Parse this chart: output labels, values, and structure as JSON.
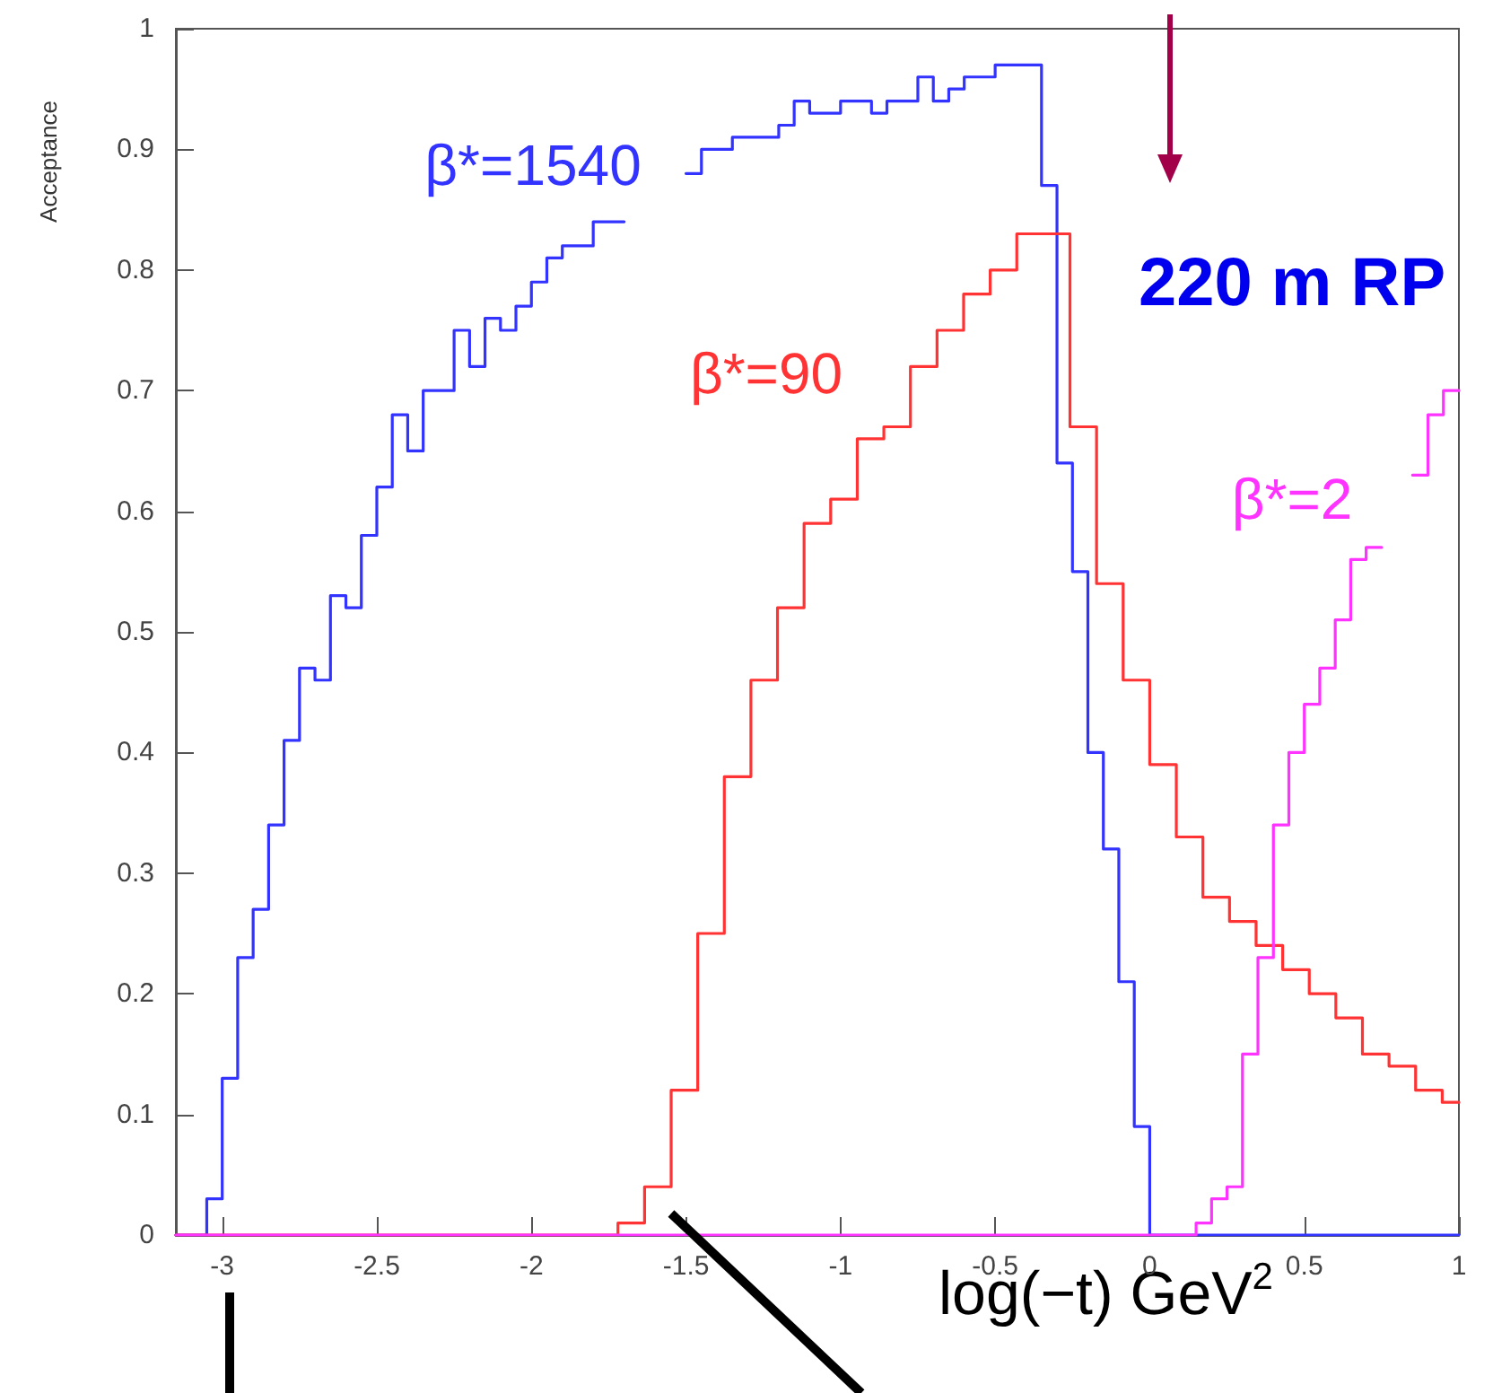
{
  "chart_data": {
    "type": "step",
    "xlabel": "log(−t) GeV$^{2}$",
    "ylabel": "Acceptance",
    "annotations": [
      "220 m RP"
    ],
    "xlim": [
      -3.15,
      1
    ],
    "xticks": [
      -3,
      -2.5,
      -2,
      -1.5,
      -1,
      -0.5,
      0,
      0.5,
      1
    ],
    "ylim": [
      0,
      1
    ],
    "yticks": [
      0,
      0.1,
      0.2,
      0.3,
      0.4,
      0.5,
      0.6,
      0.7,
      0.8,
      0.9,
      1
    ],
    "grid": false,
    "legend": false,
    "marker": "none",
    "line_style": "solid",
    "series": [
      {
        "name": "β*=1540",
        "color": "#3333ff",
        "x": [
          -3.15,
          -3.05,
          -3.0,
          -2.95,
          -2.9,
          -2.85,
          -2.8,
          -2.75,
          -2.7,
          -2.65,
          -2.6,
          -2.55,
          -2.5,
          -2.45,
          -2.4,
          -2.35,
          -2.3,
          -2.25,
          -2.2,
          -2.15,
          -2.1,
          -2.05,
          -2.0,
          -1.95,
          -1.9,
          -1.85,
          -1.8,
          -1.75,
          -1.7,
          -1.65,
          -1.6,
          -1.55,
          -1.5,
          -1.45,
          -1.4,
          -1.35,
          -1.3,
          -1.25,
          -1.2,
          -1.15,
          -1.1,
          -1.05,
          -1.0,
          -0.95,
          -0.9,
          -0.85,
          -0.8,
          -0.75,
          -0.7,
          -0.65,
          -0.6,
          -0.55,
          -0.5,
          -0.45,
          -0.4,
          -0.35,
          -0.3,
          -0.25,
          -0.2,
          -0.15,
          -0.1,
          -0.05,
          0,
          1
        ],
        "values": [
          0,
          0.03,
          0.13,
          0.23,
          0.27,
          0.34,
          0.41,
          0.47,
          0.46,
          0.53,
          0.52,
          0.58,
          0.62,
          0.68,
          0.65,
          0.7,
          0.7,
          0.75,
          0.72,
          0.76,
          0.75,
          0.77,
          0.79,
          0.81,
          0.82,
          0.82,
          0.84,
          0.84,
          null,
          null,
          null,
          null,
          0.88,
          0.9,
          0.9,
          0.91,
          0.91,
          0.91,
          0.92,
          0.94,
          0.93,
          0.93,
          0.94,
          0.94,
          0.93,
          0.94,
          0.94,
          0.96,
          0.94,
          0.95,
          0.96,
          0.96,
          0.97,
          0.97,
          0.97,
          0.87,
          0.64,
          0.55,
          0.4,
          0.32,
          0.21,
          0.09,
          0,
          0
        ]
      },
      {
        "name": "β*=90",
        "color": "#ff3333",
        "x": [
          -3.15,
          -1.72,
          -1.634,
          -1.548,
          -1.462,
          -1.376,
          -1.29,
          -1.204,
          -1.118,
          -1.032,
          -0.946,
          -0.86,
          -0.774,
          -0.688,
          -0.602,
          -0.516,
          -0.43,
          -0.344,
          -0.258,
          -0.172,
          -0.086,
          0,
          0.086,
          0.172,
          0.258,
          0.344,
          0.43,
          0.516,
          0.602,
          0.688,
          0.774,
          0.86,
          0.946,
          1
        ],
        "values": [
          0,
          0.01,
          0.04,
          0.12,
          0.25,
          0.38,
          0.46,
          0.52,
          0.59,
          0.61,
          0.66,
          0.67,
          0.72,
          0.75,
          0.78,
          0.8,
          0.83,
          0.83,
          0.67,
          0.54,
          0.46,
          0.39,
          0.33,
          0.28,
          0.26,
          0.24,
          0.22,
          0.2,
          0.18,
          0.15,
          0.14,
          0.12,
          0.11,
          0.11
        ]
      },
      {
        "name": "β*=2",
        "color": "#ff33ff",
        "x": [
          -3.15,
          0.15,
          0.2,
          0.25,
          0.3,
          0.35,
          0.4,
          0.45,
          0.5,
          0.55,
          0.6,
          0.65,
          0.7,
          0.75,
          0.8,
          0.85,
          0.9,
          0.95,
          1
        ],
        "values": [
          0,
          0.01,
          0.03,
          0.04,
          0.15,
          0.23,
          0.34,
          0.4,
          0.44,
          0.47,
          0.51,
          0.56,
          0.57,
          null,
          null,
          0.63,
          0.68,
          0.7,
          0.7
        ]
      }
    ]
  }
}
